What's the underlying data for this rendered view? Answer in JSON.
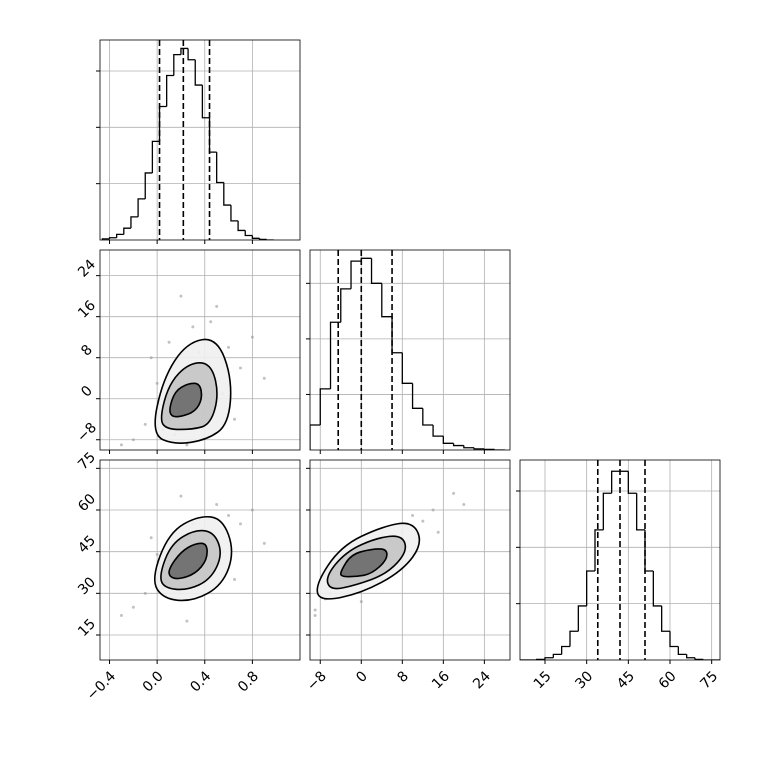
{
  "chart_data": {
    "type": "corner",
    "grid": true,
    "color": "#000000",
    "contour_fills": [
      "#efefef",
      "#c4c4c4",
      "#6a6a6a"
    ],
    "parameters": [
      {
        "xlim": [
          -0.48,
          1.2
        ],
        "xticks": [
          {
            "value": -0.4,
            "label": "−0.4"
          },
          {
            "value": 0,
            "label": "0.0"
          },
          0.4,
          0.8
        ],
        "bins": [
          -0.46,
          -0.4,
          -0.34,
          -0.28,
          -0.22,
          -0.16,
          -0.1,
          -0.04,
          0.02,
          0.08,
          0.14,
          0.2,
          0.26,
          0.32,
          0.38,
          0.44,
          0.5,
          0.56,
          0.62,
          0.68,
          0.74,
          0.8,
          0.86,
          0.92,
          0.98
        ],
        "counts": [
          2,
          4,
          10,
          21,
          41,
          73,
          119,
          175,
          237,
          292,
          329,
          340,
          320,
          275,
          217,
          156,
          102,
          62,
          34,
          17,
          8,
          3,
          1,
          0
        ],
        "hist_ylim": [
          0,
          355
        ],
        "hist_yticks": [
          100,
          200,
          300
        ],
        "quantiles": [
          0.02,
          0.22,
          0.44
        ]
      },
      {
        "xlim": [
          -10,
          29
        ],
        "xticks": [
          {
            "value": -8,
            "label": "−8"
          },
          0,
          8,
          16,
          24
        ],
        "bins": [
          -10,
          -8,
          -6,
          -4,
          -2,
          0,
          2,
          4,
          6,
          8,
          10,
          12,
          14,
          16,
          18,
          20,
          22,
          24,
          26,
          28
        ],
        "counts": [
          45,
          110,
          230,
          290,
          340,
          345,
          300,
          240,
          175,
          120,
          75,
          45,
          25,
          12,
          8,
          4,
          2,
          1,
          0
        ],
        "hist_ylim": [
          0,
          360
        ],
        "hist_yticks": [
          100,
          200,
          300
        ],
        "quantiles": [
          -4.5,
          0,
          6
        ]
      },
      {
        "xlim": [
          6,
          78
        ],
        "xticks": [
          15,
          30,
          45,
          60,
          75
        ],
        "bins": [
          6,
          9,
          12,
          15,
          18,
          21,
          24,
          27,
          30,
          33,
          36,
          39,
          42,
          45,
          48,
          51,
          54,
          57,
          60,
          63,
          66,
          69,
          72,
          75,
          78
        ],
        "counts": [
          0,
          0,
          1,
          4,
          10,
          24,
          51,
          96,
          158,
          231,
          296,
          335,
          335,
          296,
          231,
          158,
          96,
          51,
          24,
          10,
          4,
          1,
          0,
          0
        ],
        "hist_ylim": [
          0,
          355
        ],
        "hist_yticks": [
          100,
          200,
          300
        ],
        "quantiles": [
          34,
          42,
          51
        ]
      }
    ],
    "pairs": [
      {
        "x_param": 0,
        "y_param": 1,
        "points": {
          "x": [
            0.05,
            0.3,
            0.6,
            -0.2,
            0.45,
            0.1,
            0.7,
            0.25,
            -0.1,
            0.5,
            0.35,
            0.0,
            0.8,
            0.15,
            0.4,
            -0.3,
            0.55,
            0.2,
            0.65,
            -0.05,
            0.3,
            0.9,
            0.1,
            0.45,
            0.25
          ],
          "y": [
            -6,
            5,
            10,
            -8,
            15,
            2,
            6,
            -2,
            -5,
            18,
            9,
            3,
            12,
            -7,
            -3,
            -9,
            1,
            20,
            -4,
            8,
            14,
            4,
            11,
            -1,
            -9
          ]
        },
        "contours": [
          {
            "x": [
              -0.05,
              0.05,
              0.25,
              0.5,
              0.63,
              0.6,
              0.42,
              0.15
            ],
            "y": [
              -7,
              4,
              11,
              12,
              4,
              -5,
              -8,
              -9
            ]
          },
          {
            "x": [
              0.02,
              0.1,
              0.27,
              0.45,
              0.52,
              0.45,
              0.3,
              0.08
            ],
            "y": [
              -4,
              3,
              7,
              7,
              1,
              -5,
              -6,
              -6
            ]
          },
          {
            "x": [
              0.1,
              0.15,
              0.26,
              0.36,
              0.38,
              0.32,
              0.2,
              0.12
            ],
            "y": [
              -2,
              1.5,
              3,
              3,
              0,
              -2.5,
              -3.5,
              -3.5
            ]
          }
        ]
      },
      {
        "x_param": 0,
        "y_param": 2,
        "points": {
          "x": [
            0.05,
            0.3,
            0.6,
            -0.2,
            0.45,
            0.1,
            0.7,
            0.25,
            -0.1,
            0.5,
            0.35,
            0.0,
            0.8,
            0.15,
            0.4,
            -0.3,
            0.55,
            0.2,
            0.65,
            -0.05,
            0.3,
            0.9,
            0.1,
            0.45,
            0.25
          ],
          "y": [
            32,
            48,
            58,
            25,
            52,
            40,
            55,
            38,
            30,
            62,
            50,
            44,
            60,
            28,
            36,
            22,
            45,
            65,
            35,
            50,
            55,
            48,
            42,
            40,
            20
          ]
        },
        "contours": [
          {
            "x": [
              -0.05,
              0.1,
              0.35,
              0.55,
              0.65,
              0.55,
              0.3,
              0.05
            ],
            "y": [
              35,
              52,
              58,
              57,
              45,
              33,
              27,
              28
            ]
          },
          {
            "x": [
              0.02,
              0.12,
              0.32,
              0.48,
              0.55,
              0.45,
              0.25,
              0.05
            ],
            "y": [
              37,
              48,
              53,
              52,
              44,
              35,
              31,
              32
            ]
          },
          {
            "x": [
              0.1,
              0.2,
              0.32,
              0.42,
              0.42,
              0.32,
              0.18,
              0.1
            ],
            "y": [
              39,
              45,
              48,
              48,
              42,
              37,
              35,
              36
            ]
          }
        ]
      },
      {
        "x_param": 1,
        "y_param": 2,
        "points": {
          "x": [
            -6,
            3,
            10,
            -9,
            8,
            0,
            14,
            2,
            -4,
            18,
            6,
            -2,
            12,
            -7,
            -1,
            -9,
            5,
            20,
            4,
            1,
            9,
            15,
            -3,
            7,
            0
          ],
          "y": [
            30,
            46,
            58,
            24,
            52,
            40,
            60,
            38,
            32,
            66,
            50,
            42,
            56,
            28,
            36,
            22,
            45,
            62,
            35,
            44,
            55,
            52,
            34,
            48,
            27
          ]
        },
        "contours": [
          {
            "x": [
              -9,
              -4,
              4,
              10,
              12,
              8,
              0,
              -8
            ],
            "y": [
              33,
              47,
              54,
              56,
              48,
              38,
              30,
              27
            ]
          },
          {
            "x": [
              -7,
              -3,
              3,
              8,
              9,
              5,
              -1,
              -6
            ],
            "y": [
              36,
              45,
              50,
              51,
              45,
              37,
              33,
              31
            ]
          },
          {
            "x": [
              -4,
              -2,
              2,
              5,
              5,
              2,
              -1,
              -4
            ],
            "y": [
              38,
              44,
              46,
              46,
              42,
              37,
              36,
              36
            ]
          }
        ]
      }
    ]
  }
}
